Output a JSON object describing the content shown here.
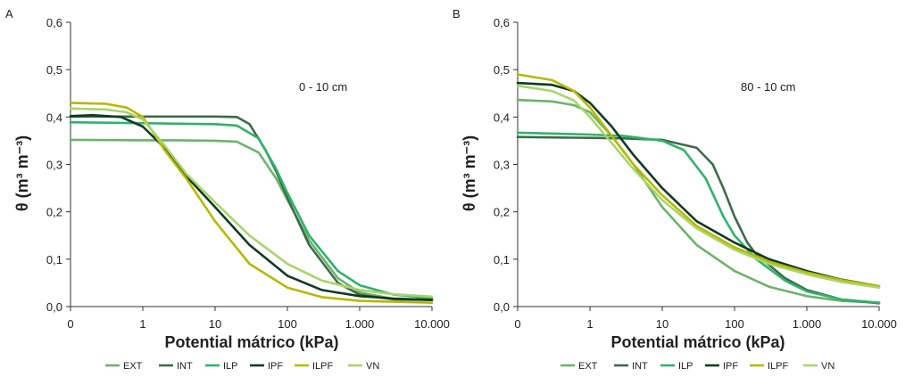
{
  "chart_data": [
    {
      "type": "line",
      "panel_label": "A",
      "annotation": "0 - 10 cm",
      "xlabel": "Potential mátrico (kPa)",
      "ylabel": "θ (m³ m⁻³)",
      "x_scale": "log",
      "x_ticks": [
        0.1,
        1,
        10,
        100,
        1000,
        10000
      ],
      "x_tick_labels": [
        "0",
        "1",
        "10",
        "100",
        "1.000",
        "10.000"
      ],
      "y_ticks": [
        0,
        0.1,
        0.2,
        0.3,
        0.4,
        0.5,
        0.6
      ],
      "y_tick_labels": [
        "0,0",
        "0,1",
        "0,2",
        "0,3",
        "0,4",
        "0,5",
        "0,6"
      ],
      "xlim": [
        0.1,
        10000
      ],
      "ylim": [
        0,
        0.6
      ],
      "grid": false,
      "legend_position": "bottom",
      "series": [
        {
          "name": "EXT",
          "color": "#6db36a",
          "x": [
            0.1,
            1,
            3,
            10,
            20,
            40,
            70,
            100,
            200,
            500,
            1000,
            3000,
            10000
          ],
          "y": [
            0.352,
            0.351,
            0.351,
            0.35,
            0.348,
            0.325,
            0.27,
            0.225,
            0.14,
            0.06,
            0.03,
            0.016,
            0.015
          ]
        },
        {
          "name": "INT",
          "color": "#3d6b4a",
          "x": [
            0.1,
            1,
            3,
            10,
            20,
            30,
            50,
            70,
            100,
            200,
            500,
            1000,
            3000,
            10000
          ],
          "y": [
            0.401,
            0.401,
            0.401,
            0.401,
            0.4,
            0.385,
            0.33,
            0.285,
            0.23,
            0.13,
            0.05,
            0.025,
            0.015,
            0.014
          ]
        },
        {
          "name": "ILP",
          "color": "#2fb36a",
          "x": [
            0.1,
            1,
            3,
            10,
            20,
            40,
            70,
            100,
            200,
            500,
            1000,
            3000,
            10000
          ],
          "y": [
            0.389,
            0.387,
            0.386,
            0.385,
            0.382,
            0.355,
            0.29,
            0.24,
            0.15,
            0.075,
            0.045,
            0.025,
            0.018
          ]
        },
        {
          "name": "IPF",
          "color": "#0f3a24",
          "x": [
            0.1,
            0.2,
            0.5,
            1,
            2,
            4,
            10,
            30,
            100,
            300,
            1000,
            3000,
            10000
          ],
          "y": [
            0.402,
            0.404,
            0.4,
            0.38,
            0.335,
            0.275,
            0.21,
            0.13,
            0.065,
            0.035,
            0.022,
            0.017,
            0.014
          ]
        },
        {
          "name": "ILPF",
          "color": "#b8b800",
          "x": [
            0.1,
            0.3,
            0.6,
            1,
            1.5,
            2,
            4,
            10,
            30,
            100,
            300,
            1000,
            10000
          ],
          "y": [
            0.43,
            0.428,
            0.42,
            0.4,
            0.36,
            0.33,
            0.27,
            0.18,
            0.09,
            0.04,
            0.02,
            0.012,
            0.008
          ]
        },
        {
          "name": "VN",
          "color": "#a9d56a",
          "x": [
            0.1,
            0.3,
            0.6,
            1,
            2,
            4,
            10,
            30,
            100,
            300,
            1000,
            3000,
            10000
          ],
          "y": [
            0.418,
            0.416,
            0.41,
            0.395,
            0.34,
            0.28,
            0.22,
            0.15,
            0.09,
            0.055,
            0.035,
            0.026,
            0.021
          ]
        }
      ]
    },
    {
      "type": "line",
      "panel_label": "B",
      "annotation": "80 - 10 cm",
      "xlabel": "Potential mátrico (kPa)",
      "ylabel": "θ (m³ m⁻³)",
      "x_scale": "log",
      "x_ticks": [
        0.1,
        1,
        10,
        100,
        1000,
        10000
      ],
      "x_tick_labels": [
        "0",
        "1",
        "10",
        "100",
        "1.000",
        "10.000"
      ],
      "y_ticks": [
        0,
        0.1,
        0.2,
        0.3,
        0.4,
        0.5,
        0.6
      ],
      "y_tick_labels": [
        "0,0",
        "0,1",
        "0,2",
        "0,3",
        "0,4",
        "0,5",
        "0,6"
      ],
      "xlim": [
        0.1,
        10000
      ],
      "ylim": [
        0,
        0.6
      ],
      "grid": false,
      "legend_position": "bottom",
      "series": [
        {
          "name": "EXT",
          "color": "#6db36a",
          "x": [
            0.1,
            0.3,
            0.6,
            1,
            2,
            4,
            10,
            30,
            100,
            300,
            1000,
            3000,
            10000
          ],
          "y": [
            0.436,
            0.433,
            0.425,
            0.41,
            0.36,
            0.3,
            0.21,
            0.13,
            0.075,
            0.042,
            0.022,
            0.012,
            0.008
          ]
        },
        {
          "name": "INT",
          "color": "#3d6b4a",
          "x": [
            0.1,
            1,
            3,
            10,
            30,
            50,
            70,
            100,
            150,
            200,
            500,
            1000,
            3000,
            10000
          ],
          "y": [
            0.358,
            0.356,
            0.355,
            0.352,
            0.335,
            0.3,
            0.25,
            0.19,
            0.135,
            0.11,
            0.06,
            0.035,
            0.015,
            0.007
          ]
        },
        {
          "name": "ILP",
          "color": "#2fb36a",
          "x": [
            0.1,
            1,
            3,
            10,
            20,
            40,
            70,
            100,
            200,
            500,
            1000,
            3000,
            10000
          ],
          "y": [
            0.367,
            0.363,
            0.36,
            0.35,
            0.33,
            0.27,
            0.19,
            0.15,
            0.1,
            0.055,
            0.032,
            0.015,
            0.008
          ]
        },
        {
          "name": "IPF",
          "color": "#0f3a24",
          "x": [
            0.1,
            0.3,
            0.6,
            1,
            2,
            4,
            10,
            30,
            100,
            300,
            1000,
            3000,
            10000
          ],
          "y": [
            0.472,
            0.468,
            0.455,
            0.43,
            0.38,
            0.32,
            0.25,
            0.18,
            0.135,
            0.1,
            0.075,
            0.057,
            0.043
          ]
        },
        {
          "name": "ILPF",
          "color": "#b8b800",
          "x": [
            0.1,
            0.3,
            0.6,
            1,
            2,
            4,
            10,
            30,
            100,
            300,
            1000,
            3000,
            10000
          ],
          "y": [
            0.49,
            0.478,
            0.455,
            0.42,
            0.36,
            0.3,
            0.235,
            0.17,
            0.125,
            0.095,
            0.072,
            0.056,
            0.043
          ]
        },
        {
          "name": "VN",
          "color": "#a9d56a",
          "x": [
            0.1,
            0.3,
            0.6,
            1,
            2,
            4,
            10,
            30,
            100,
            300,
            1000,
            3000,
            10000
          ],
          "y": [
            0.466,
            0.455,
            0.435,
            0.4,
            0.345,
            0.29,
            0.225,
            0.165,
            0.12,
            0.09,
            0.068,
            0.052,
            0.04
          ]
        }
      ]
    }
  ]
}
